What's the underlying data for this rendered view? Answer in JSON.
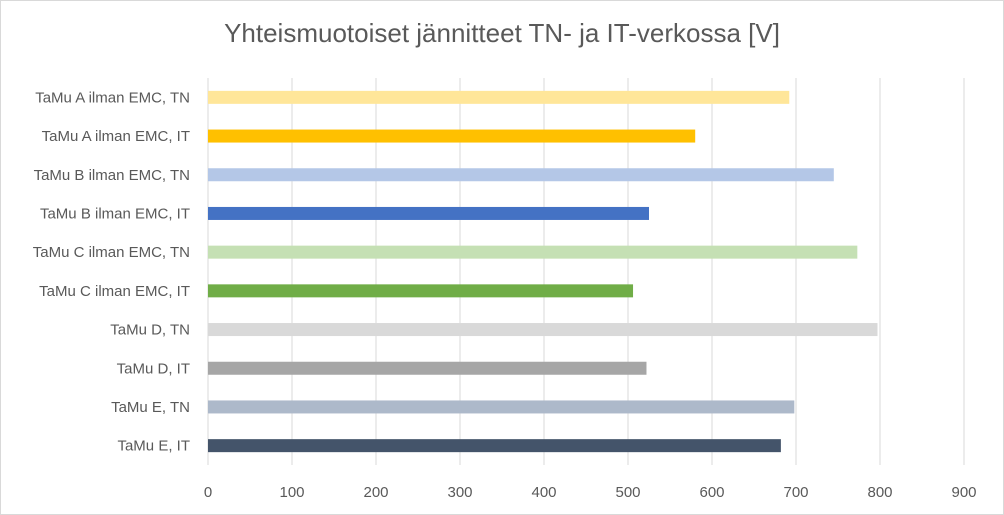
{
  "chart_data": {
    "type": "bar",
    "orientation": "horizontal",
    "title": "Yhteismuotoiset jännitteet TN- ja IT-verkossa [V]",
    "xlabel": "",
    "ylabel": "",
    "xlim": [
      0,
      900
    ],
    "x_ticks": [
      "0",
      "100",
      "200",
      "300",
      "400",
      "500",
      "600",
      "700",
      "800",
      "900"
    ],
    "grid": "vertical",
    "legend": "none",
    "categories": [
      "TaMu A ilman EMC, TN",
      "TaMu A ilman EMC, IT",
      "TaMu B ilman EMC, TN",
      "TaMu B ilman EMC, IT",
      "TaMu C ilman EMC, TN",
      "TaMu C ilman EMC, IT",
      "TaMu D, TN",
      "TaMu D, IT",
      "TaMu E, TN",
      "TaMu E, IT"
    ],
    "values": [
      692,
      580,
      745,
      525,
      773,
      506,
      797,
      522,
      698,
      682
    ],
    "colors": [
      "#FFE699",
      "#FFC000",
      "#B4C7E7",
      "#4472C4",
      "#C5E0B4",
      "#70AD47",
      "#D9D9D9",
      "#A6A6A6",
      "#ADB9CA",
      "#44546A"
    ]
  }
}
